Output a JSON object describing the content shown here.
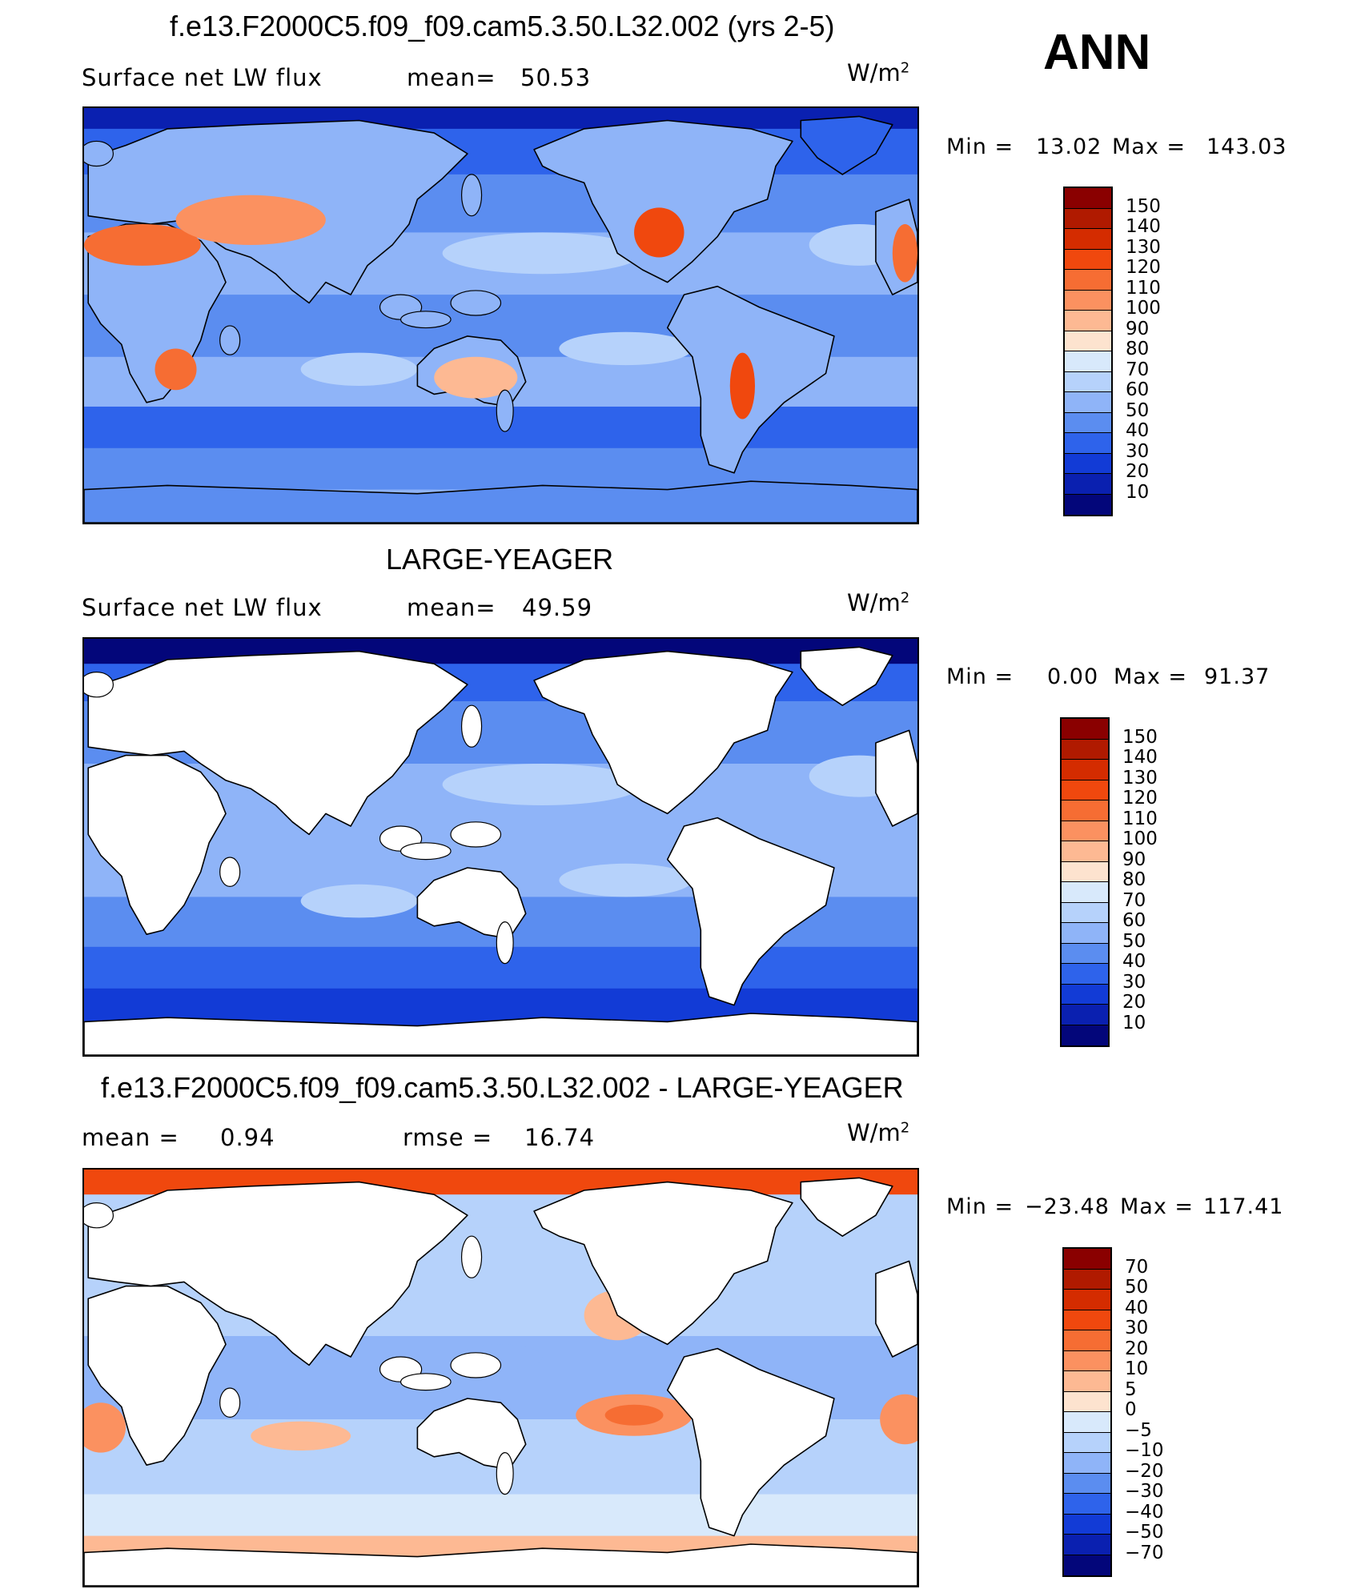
{
  "season": "ANN",
  "units": {
    "base": "W/m",
    "exp": "2"
  },
  "panels": [
    {
      "title": "f.e13.F2000C5.f09_f09.cam5.3.50.L32.002 (yrs 2-5)",
      "stat_left_label": "Surface net LW flux",
      "stat_right_label": "mean=",
      "stat_right_value": "50.53",
      "min_label": "Min =",
      "min_value": "13.02",
      "max_label": "Max =",
      "max_value": "143.03",
      "colorbar": {
        "labels": [
          "150",
          "140",
          "130",
          "120",
          "110",
          "100",
          "90",
          "80",
          "70",
          "60",
          "50",
          "40",
          "30",
          "20",
          "10"
        ],
        "colors": [
          "#8a0000",
          "#b01a00",
          "#d42c00",
          "#f0480e",
          "#f66d33",
          "#fb9160",
          "#fdb993",
          "#fde3cf",
          "#d8e9fb",
          "#b6d2fb",
          "#8fb4f8",
          "#5b8df0",
          "#2e63eb",
          "#123bd6",
          "#0a20b0",
          "#03067a"
        ]
      },
      "map_style": "model"
    },
    {
      "title": "LARGE-YEAGER",
      "stat_left_label": "Surface net LW flux",
      "stat_right_label": "mean=",
      "stat_right_value": "49.59",
      "min_label": "Min =",
      "min_value": "0.00",
      "max_label": "Max =",
      "max_value": "91.37",
      "colorbar": {
        "labels": [
          "150",
          "140",
          "130",
          "120",
          "110",
          "100",
          "90",
          "80",
          "70",
          "60",
          "50",
          "40",
          "30",
          "20",
          "10"
        ],
        "colors": [
          "#8a0000",
          "#b01a00",
          "#d42c00",
          "#f0480e",
          "#f66d33",
          "#fb9160",
          "#fdb993",
          "#fde3cf",
          "#d8e9fb",
          "#b6d2fb",
          "#8fb4f8",
          "#5b8df0",
          "#2e63eb",
          "#123bd6",
          "#0a20b0",
          "#03067a"
        ]
      },
      "map_style": "obs"
    },
    {
      "title": "f.e13.F2000C5.f09_f09.cam5.3.50.L32.002 - LARGE-YEAGER",
      "stat_left_label": "mean =",
      "stat_left_value": "0.94",
      "stat_right_label": "rmse =",
      "stat_right_value": "16.74",
      "min_label": "Min =",
      "min_value": "−23.48",
      "max_label": "Max =",
      "max_value": "117.41",
      "colorbar": {
        "labels": [
          "70",
          "50",
          "40",
          "30",
          "20",
          "10",
          "5",
          "0",
          "−5",
          "−10",
          "−20",
          "−30",
          "−40",
          "−50",
          "−70"
        ],
        "colors": [
          "#8a0000",
          "#b01a00",
          "#d42c00",
          "#f0480e",
          "#f66d33",
          "#fb9160",
          "#fdb993",
          "#fde3cf",
          "#d8e9fb",
          "#b6d2fb",
          "#8fb4f8",
          "#5b8df0",
          "#2e63eb",
          "#123bd6",
          "#0a20b0",
          "#03067a"
        ]
      },
      "map_style": "diff"
    }
  ]
}
